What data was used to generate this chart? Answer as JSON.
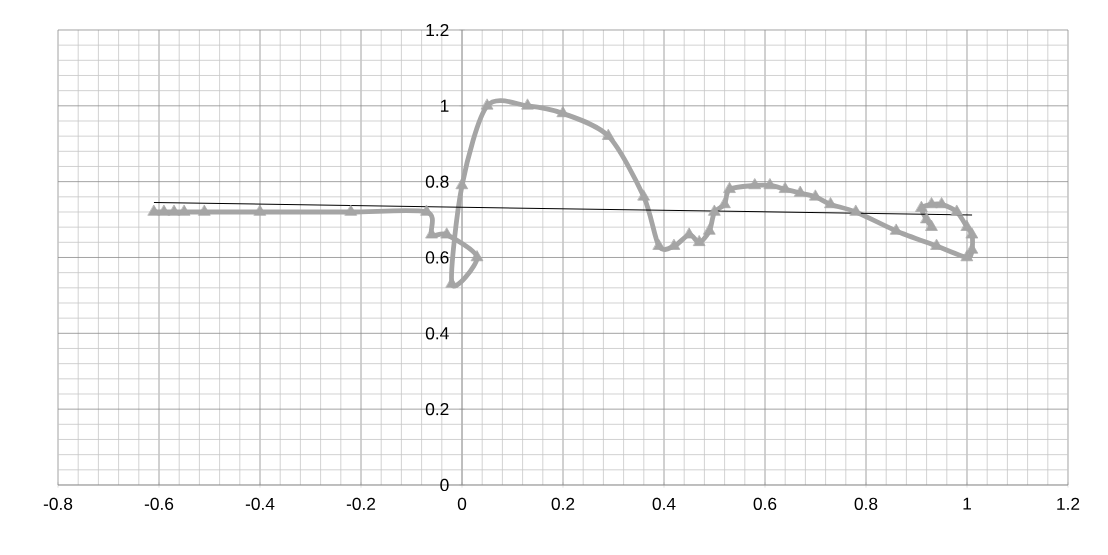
{
  "chart_data": {
    "type": "line",
    "xlim": [
      -0.8,
      1.2
    ],
    "ylim": [
      0,
      1.2
    ],
    "xticks": [
      -0.8,
      -0.6,
      -0.4,
      -0.2,
      0,
      0.2,
      0.4,
      0.6,
      0.8,
      1,
      1.2
    ],
    "yticks": [
      0,
      0.2,
      0.4,
      0.6,
      0.8,
      1,
      1.2
    ],
    "grid": true,
    "series": [
      {
        "marker": "triangle",
        "color": "#a5a5a5",
        "x": [
          -0.61,
          -0.59,
          -0.57,
          -0.55,
          -0.51,
          -0.4,
          -0.22,
          -0.07,
          -0.06,
          -0.03,
          0.03,
          -0.02,
          0.0,
          0.05,
          0.13,
          0.2,
          0.29,
          0.36,
          0.39,
          0.42,
          0.45,
          0.47,
          0.49,
          0.5,
          0.52,
          0.53,
          0.58,
          0.61,
          0.64,
          0.67,
          0.7,
          0.73,
          0.78,
          0.86,
          0.94,
          1.0,
          1.01,
          1.01,
          1.0,
          0.98,
          0.95,
          0.93,
          0.91,
          0.92,
          0.93
        ],
        "values": [
          0.72,
          0.72,
          0.72,
          0.72,
          0.72,
          0.72,
          0.72,
          0.72,
          0.66,
          0.66,
          0.6,
          0.53,
          0.79,
          1.0,
          1.0,
          0.98,
          0.92,
          0.76,
          0.63,
          0.63,
          0.66,
          0.64,
          0.67,
          0.72,
          0.74,
          0.78,
          0.79,
          0.79,
          0.78,
          0.77,
          0.76,
          0.74,
          0.72,
          0.67,
          0.63,
          0.6,
          0.62,
          0.66,
          0.68,
          0.72,
          0.74,
          0.74,
          0.73,
          0.7,
          0.68
        ]
      },
      {
        "marker": "none",
        "color": "#000000",
        "x": [
          -0.61,
          1.01
        ],
        "values": [
          0.745,
          0.712
        ]
      }
    ]
  }
}
